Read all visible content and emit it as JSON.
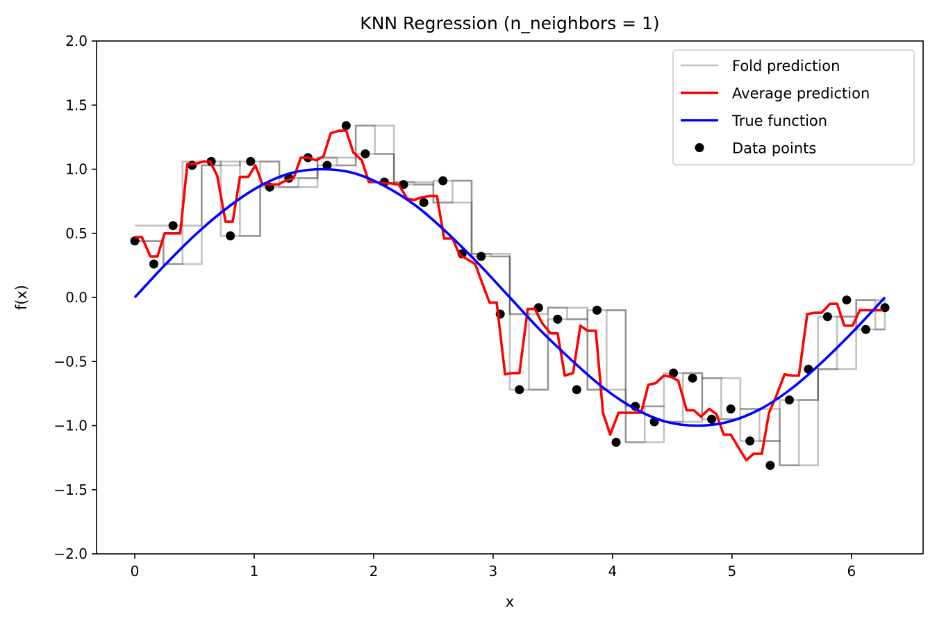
{
  "chart_data": {
    "type": "line",
    "title": "KNN Regression (n_neighbors = 1)",
    "xlabel": "x",
    "ylabel": "f(x)",
    "xlim": [
      -0.32,
      6.6
    ],
    "ylim": [
      -2.0,
      2.0
    ],
    "x_ticks": [
      0,
      1,
      2,
      3,
      4,
      5,
      6
    ],
    "x_tick_labels": [
      "0",
      "1",
      "2",
      "3",
      "4",
      "5",
      "6"
    ],
    "y_ticks": [
      -2.0,
      -1.5,
      -1.0,
      -0.5,
      0.0,
      0.5,
      1.0,
      1.5,
      2.0
    ],
    "y_tick_labels": [
      "−2.0",
      "−1.5",
      "−1.0",
      "−0.5",
      "0.0",
      "0.5",
      "1.0",
      "1.5",
      "2.0"
    ],
    "grid": false,
    "legend_position": "top-right",
    "legend": [
      {
        "label": "Fold prediction",
        "kind": "line",
        "color": "#bfbfbf"
      },
      {
        "label": "Average prediction",
        "kind": "line",
        "color": "#ff0000"
      },
      {
        "label": "True function",
        "kind": "line",
        "color": "#0000ff"
      },
      {
        "label": "Data points",
        "kind": "marker",
        "color": "#000000"
      }
    ],
    "colors": {
      "fold": "#bfbfbf",
      "average": "#ff0000",
      "true": "#0000ff",
      "points": "#000000"
    },
    "data_points": {
      "x": [
        0.0,
        0.16,
        0.32,
        0.48,
        0.64,
        0.8,
        0.97,
        1.13,
        1.29,
        1.45,
        1.61,
        1.77,
        1.93,
        2.09,
        2.25,
        2.42,
        2.58,
        2.74,
        2.9,
        3.06,
        3.22,
        3.38,
        3.54,
        3.7,
        3.87,
        4.03,
        4.19,
        4.35,
        4.51,
        4.67,
        4.83,
        4.99,
        5.15,
        5.32,
        5.48,
        5.64,
        5.8,
        5.96,
        6.12,
        6.28
      ],
      "y": [
        0.44,
        0.26,
        0.56,
        1.03,
        1.06,
        0.48,
        1.06,
        0.86,
        0.93,
        1.09,
        1.03,
        1.34,
        1.12,
        0.9,
        0.88,
        0.74,
        0.91,
        0.34,
        0.32,
        -0.13,
        -0.72,
        -0.08,
        -0.17,
        -0.72,
        -0.1,
        -1.13,
        -0.85,
        -0.97,
        -0.59,
        -0.63,
        -0.95,
        -0.87,
        -1.12,
        -1.31,
        -0.8,
        -0.56,
        -0.15,
        -0.02,
        -0.25,
        -0.08
      ]
    },
    "true_function": {
      "name": "True function",
      "x": [
        0.0,
        0.26,
        0.52,
        0.79,
        1.05,
        1.31,
        1.57,
        1.83,
        2.09,
        2.36,
        2.62,
        2.88,
        3.14,
        3.4,
        3.67,
        3.93,
        4.19,
        4.45,
        4.71,
        4.97,
        5.24,
        5.5,
        5.76,
        6.02,
        6.28
      ],
      "y": [
        0.0,
        0.26,
        0.5,
        0.71,
        0.87,
        0.97,
        1.0,
        0.97,
        0.87,
        0.71,
        0.5,
        0.26,
        0.0,
        -0.26,
        -0.5,
        -0.71,
        -0.87,
        -0.97,
        -1.0,
        -0.97,
        -0.87,
        -0.71,
        -0.5,
        -0.26,
        0.0
      ]
    },
    "fold_predictions": [
      {
        "x": [
          0.0,
          0.08,
          0.24,
          0.4,
          0.56,
          0.72,
          0.88,
          1.05,
          1.21,
          1.37,
          1.53,
          1.69,
          1.85,
          2.01,
          2.17,
          2.34,
          2.5,
          2.66,
          2.82,
          2.98,
          3.14,
          3.3,
          3.46,
          3.62,
          3.79,
          3.95,
          4.11,
          4.27,
          4.43,
          4.59,
          4.75,
          4.91,
          5.07,
          5.23,
          5.4,
          5.56,
          5.72,
          5.88,
          6.04,
          6.2,
          6.28
        ],
        "y": [
          0.44,
          0.44,
          0.26,
          0.56,
          1.03,
          1.06,
          0.48,
          1.06,
          0.86,
          0.93,
          1.09,
          1.03,
          1.34,
          1.12,
          0.9,
          0.88,
          0.74,
          0.91,
          0.34,
          0.32,
          -0.13,
          -0.72,
          -0.08,
          -0.17,
          -0.72,
          -0.1,
          -1.13,
          -0.85,
          -0.97,
          -0.59,
          -0.63,
          -0.95,
          -0.87,
          -1.12,
          -1.31,
          -0.8,
          -0.56,
          -0.15,
          -0.02,
          -0.25,
          -0.08
        ]
      },
      {
        "x": [
          0.0,
          0.24,
          0.4,
          0.72,
          1.05,
          1.21,
          1.53,
          1.85,
          2.17,
          2.5,
          2.82,
          3.14,
          3.46,
          3.79,
          4.11,
          4.43,
          4.75,
          5.07,
          5.4,
          5.72,
          6.04,
          6.28
        ],
        "y": [
          0.56,
          0.56,
          1.06,
          0.48,
          0.86,
          0.86,
          1.03,
          1.12,
          0.88,
          0.91,
          0.32,
          -0.72,
          -0.17,
          -0.1,
          -0.85,
          -0.59,
          -0.95,
          -1.12,
          -0.8,
          -0.15,
          -0.25,
          -0.25
        ]
      },
      {
        "x": [
          0.0,
          0.24,
          0.56,
          0.88,
          1.21,
          1.53,
          1.85,
          2.17,
          2.5,
          2.82,
          3.14,
          3.46,
          3.79,
          4.11,
          4.43,
          4.75,
          5.07,
          5.4,
          5.72,
          6.04,
          6.28
        ],
        "y": [
          0.44,
          0.26,
          1.03,
          1.06,
          0.93,
          1.09,
          1.34,
          0.9,
          0.74,
          0.34,
          -0.13,
          -0.08,
          -0.72,
          -1.13,
          -0.97,
          -0.63,
          -0.87,
          -1.31,
          -0.56,
          -0.02,
          -0.08
        ]
      }
    ],
    "average_prediction": {
      "name": "Average prediction",
      "x": [
        0.0,
        0.06,
        0.13,
        0.19,
        0.25,
        0.32,
        0.38,
        0.44,
        0.51,
        0.57,
        0.63,
        0.69,
        0.76,
        0.82,
        0.88,
        0.95,
        1.01,
        1.07,
        1.14,
        1.2,
        1.26,
        1.33,
        1.39,
        1.45,
        1.52,
        1.58,
        1.64,
        1.71,
        1.77,
        1.83,
        1.9,
        1.96,
        2.02,
        2.09,
        2.15,
        2.21,
        2.28,
        2.34,
        2.4,
        2.47,
        2.53,
        2.59,
        2.66,
        2.72,
        2.78,
        2.85,
        2.91,
        2.97,
        3.03,
        3.1,
        3.16,
        3.22,
        3.29,
        3.35,
        3.41,
        3.48,
        3.54,
        3.6,
        3.67,
        3.73,
        3.79,
        3.86,
        3.92,
        3.98,
        4.05,
        4.11,
        4.17,
        4.24,
        4.3,
        4.36,
        4.43,
        4.49,
        4.55,
        4.62,
        4.68,
        4.74,
        4.81,
        4.87,
        4.93,
        4.99,
        5.06,
        5.12,
        5.18,
        5.25,
        5.31,
        5.37,
        5.44,
        5.5,
        5.56,
        5.63,
        5.69,
        5.75,
        5.82,
        5.88,
        5.94,
        6.01,
        6.07,
        6.13,
        6.2,
        6.26
      ],
      "y": [
        0.47,
        0.47,
        0.32,
        0.32,
        0.5,
        0.5,
        0.5,
        1.04,
        1.04,
        1.06,
        1.06,
        0.95,
        0.59,
        0.59,
        0.94,
        0.94,
        1.03,
        0.88,
        0.88,
        0.88,
        0.91,
        0.93,
        1.09,
        1.09,
        1.07,
        1.1,
        1.28,
        1.3,
        1.3,
        1.13,
        1.07,
        0.9,
        0.9,
        0.89,
        0.89,
        0.88,
        0.77,
        0.76,
        0.78,
        0.79,
        0.79,
        0.46,
        0.46,
        0.33,
        0.3,
        0.26,
        0.11,
        -0.04,
        -0.04,
        -0.6,
        -0.59,
        -0.59,
        -0.09,
        -0.09,
        -0.2,
        -0.28,
        -0.28,
        -0.61,
        -0.59,
        -0.22,
        -0.26,
        -0.26,
        -0.9,
        -1.07,
        -0.9,
        -0.9,
        -0.9,
        -0.9,
        -0.68,
        -0.67,
        -0.61,
        -0.62,
        -0.65,
        -0.88,
        -0.88,
        -0.93,
        -0.87,
        -0.91,
        -1.07,
        -1.07,
        -1.18,
        -1.27,
        -1.22,
        -1.22,
        -0.9,
        -0.77,
        -0.6,
        -0.61,
        -0.61,
        -0.13,
        -0.12,
        -0.12,
        -0.05,
        -0.05,
        -0.22,
        -0.22,
        -0.1,
        -0.1,
        -0.1,
        -0.1
      ]
    }
  }
}
